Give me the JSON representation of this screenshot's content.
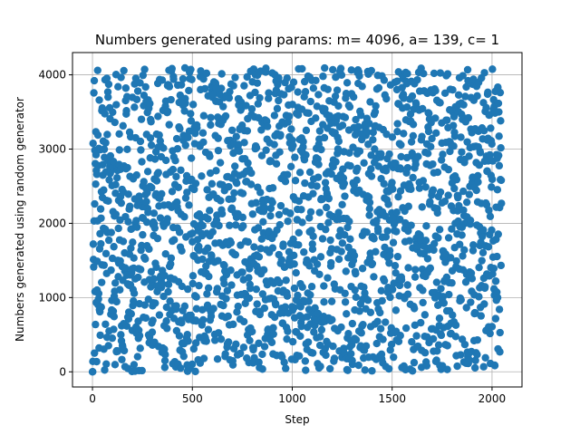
{
  "chart_data": {
    "type": "scatter",
    "title": "Numbers generated using params: m= 4096, a= 139, c= 1",
    "xlabel": "Step",
    "ylabel": "Numbers generated using random generator",
    "xlim": [
      -100,
      2150
    ],
    "ylim": [
      -204,
      4300
    ],
    "xticks": [
      0,
      500,
      1000,
      1500,
      2000
    ],
    "yticks": [
      0,
      1000,
      2000,
      3000,
      4000
    ],
    "grid": true,
    "marker_color": "#1f77b4",
    "generator": {
      "m": 4096,
      "a": 139,
      "c": 1,
      "seed": 0,
      "steps": 2048
    },
    "series": [
      {
        "x_start": 0,
        "x_step": 1,
        "count": 2048
      }
    ]
  }
}
